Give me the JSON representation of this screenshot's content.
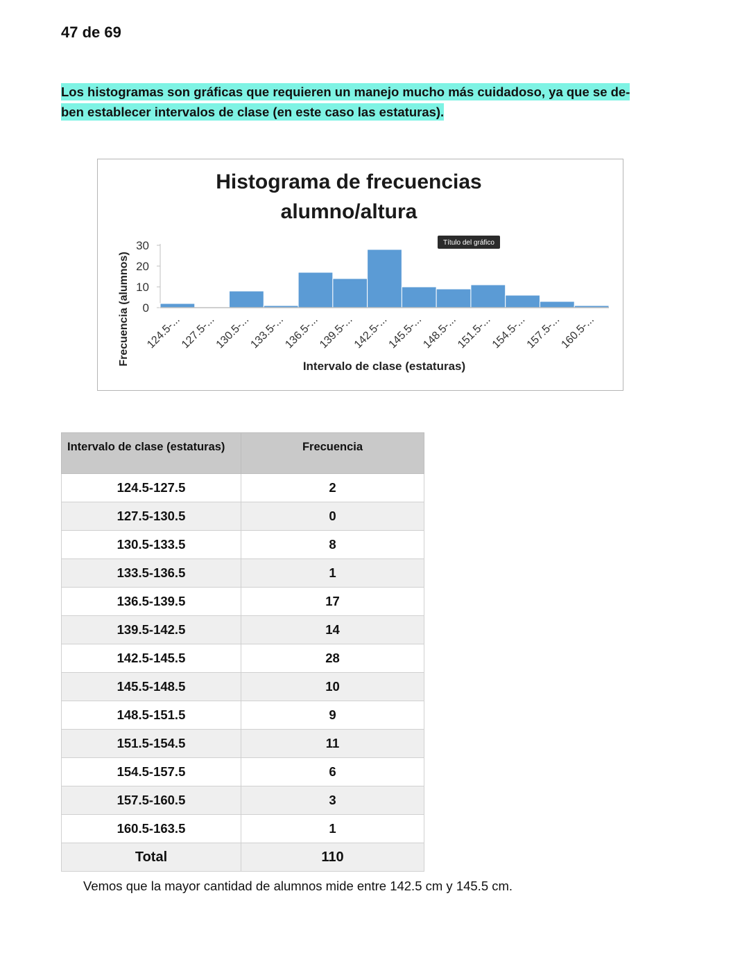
{
  "page_indicator": "47 de 69",
  "paragraph": {
    "line1": "Los histogramas son gráficas que requieren un manejo mucho más cuidadoso, ya que se de-",
    "line2": "ben establecer intervalos de clase (en este caso las estaturas).",
    "highlight_color": "#7ef3e4"
  },
  "chart_data": {
    "type": "bar",
    "title_line1": "Histograma de frecuencias",
    "title_line2": "alumno/altura",
    "xlabel": "Intervalo de clase (estaturas)",
    "ylabel": "Frecuencia (alumnos)",
    "categories": [
      "124.5-...",
      "127.5-...",
      "130.5-...",
      "133.5-...",
      "136.5-...",
      "139.5-...",
      "142.5-...",
      "145.5-...",
      "148.5-...",
      "151.5-...",
      "154.5-...",
      "157.5-...",
      "160.5-..."
    ],
    "values": [
      2,
      0,
      8,
      1,
      17,
      14,
      28,
      10,
      9,
      11,
      6,
      3,
      1
    ],
    "yticks": [
      0,
      10,
      20,
      30
    ],
    "ylim": [
      0,
      30
    ],
    "grid": false,
    "bar_color": "#5b9bd5",
    "tooltip": "Título del gráfico"
  },
  "table": {
    "headers": [
      "Intervalo de clase (estaturas)",
      "Frecuencia"
    ],
    "rows": [
      [
        "124.5-127.5",
        "2"
      ],
      [
        "127.5-130.5",
        "0"
      ],
      [
        "130.5-133.5",
        "8"
      ],
      [
        "133.5-136.5",
        "1"
      ],
      [
        "136.5-139.5",
        "17"
      ],
      [
        "139.5-142.5",
        "14"
      ],
      [
        "142.5-145.5",
        "28"
      ],
      [
        "145.5-148.5",
        "10"
      ],
      [
        "148.5-151.5",
        "9"
      ],
      [
        "151.5-154.5",
        "11"
      ],
      [
        "154.5-157.5",
        "6"
      ],
      [
        "157.5-160.5",
        "3"
      ],
      [
        "160.5-163.5",
        "1"
      ]
    ],
    "total": [
      "Total",
      "110"
    ]
  },
  "footer_text": "Vemos que la mayor cantidad de alumnos mide entre 142.5 cm y 145.5 cm."
}
